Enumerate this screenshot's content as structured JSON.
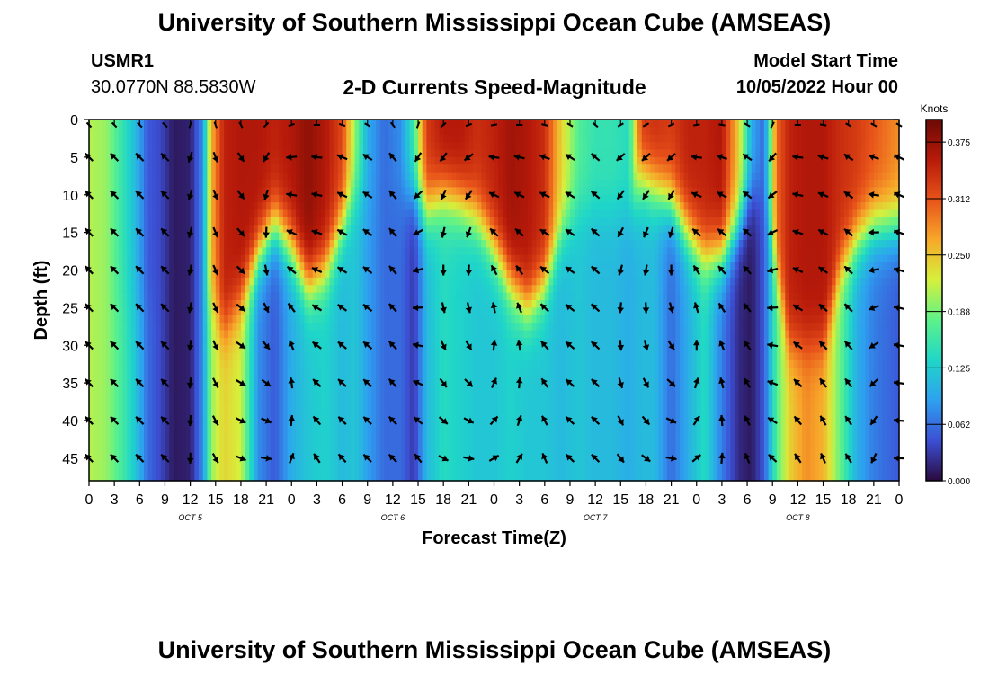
{
  "header": {
    "title": "University of Southern Mississippi Ocean Cube (AMSEAS)",
    "station_id": "USMR1",
    "coordinates": "30.0770N  88.5830W",
    "chart_title": "2-D Currents Speed-Magnitude",
    "model_start_label": "Model Start Time",
    "model_start_value": "10/05/2022 Hour 00"
  },
  "footer": {
    "title": "University of Southern Mississippi Ocean Cube (AMSEAS)"
  },
  "chart_data": {
    "type": "heatmap",
    "title": "2-D Currents Speed-Magnitude",
    "xlabel": "Forecast Time(Z)",
    "ylabel": "Depth (ft)",
    "x_range_hours": [
      0,
      96
    ],
    "y_range_ft": [
      0,
      48
    ],
    "x_ticks": [
      {
        "hour": 0,
        "label": "0"
      },
      {
        "hour": 3,
        "label": "3"
      },
      {
        "hour": 6,
        "label": "6"
      },
      {
        "hour": 9,
        "label": "9"
      },
      {
        "hour": 12,
        "label": "12"
      },
      {
        "hour": 15,
        "label": "15"
      },
      {
        "hour": 18,
        "label": "18"
      },
      {
        "hour": 21,
        "label": "21"
      },
      {
        "hour": 24,
        "label": "0"
      },
      {
        "hour": 27,
        "label": "3"
      },
      {
        "hour": 30,
        "label": "6"
      },
      {
        "hour": 33,
        "label": "9"
      },
      {
        "hour": 36,
        "label": "12"
      },
      {
        "hour": 39,
        "label": "15"
      },
      {
        "hour": 42,
        "label": "18"
      },
      {
        "hour": 45,
        "label": "21"
      },
      {
        "hour": 48,
        "label": "0"
      },
      {
        "hour": 51,
        "label": "3"
      },
      {
        "hour": 54,
        "label": "6"
      },
      {
        "hour": 57,
        "label": "9"
      },
      {
        "hour": 60,
        "label": "12"
      },
      {
        "hour": 63,
        "label": "15"
      },
      {
        "hour": 66,
        "label": "18"
      },
      {
        "hour": 69,
        "label": "21"
      },
      {
        "hour": 72,
        "label": "0"
      },
      {
        "hour": 75,
        "label": "3"
      },
      {
        "hour": 78,
        "label": "6"
      },
      {
        "hour": 81,
        "label": "9"
      },
      {
        "hour": 84,
        "label": "12"
      },
      {
        "hour": 87,
        "label": "15"
      },
      {
        "hour": 90,
        "label": "18"
      },
      {
        "hour": 93,
        "label": "21"
      },
      {
        "hour": 96,
        "label": "0"
      }
    ],
    "y_ticks": [
      0,
      5,
      10,
      15,
      20,
      25,
      30,
      35,
      40,
      45
    ],
    "day_labels": [
      {
        "hour": 12,
        "label": "OCT  5"
      },
      {
        "hour": 36,
        "label": "OCT  6"
      },
      {
        "hour": 60,
        "label": "OCT  7"
      },
      {
        "hour": 84,
        "label": "OCT  8"
      }
    ],
    "colorbar": {
      "unit": "Knots",
      "min": 0.0,
      "max": 0.4,
      "ticks": [
        {
          "value": 0.0,
          "label": "0.000"
        },
        {
          "value": 0.0625,
          "label": "0.062"
        },
        {
          "value": 0.125,
          "label": "0.125"
        },
        {
          "value": 0.1875,
          "label": "0.188"
        },
        {
          "value": 0.25,
          "label": "0.250"
        },
        {
          "value": 0.3125,
          "label": "0.312"
        },
        {
          "value": 0.375,
          "label": "0.375"
        }
      ],
      "stops": [
        "#2a0a3d",
        "#3c4fd4",
        "#2ea0f0",
        "#1fd6c8",
        "#5cf28a",
        "#d6f03c",
        "#f7a82a",
        "#e8531a",
        "#b81a0a",
        "#6b0a05"
      ]
    },
    "profiles_note": "speed profile per hour column: [speed at surface, speed at depth, transition depth ft, sharpness]",
    "profiles": [
      {
        "hour": 0,
        "surface": 0.21,
        "bottom": 0.21,
        "transition": 24
      },
      {
        "hour": 2,
        "surface": 0.2,
        "bottom": 0.2,
        "transition": 24
      },
      {
        "hour": 4,
        "surface": 0.15,
        "bottom": 0.16,
        "transition": 24
      },
      {
        "hour": 5.5,
        "surface": 0.11,
        "bottom": 0.12,
        "transition": 24
      },
      {
        "hour": 7,
        "surface": 0.05,
        "bottom": 0.06,
        "transition": 24
      },
      {
        "hour": 8.5,
        "surface": 0.04,
        "bottom": 0.04,
        "transition": 24
      },
      {
        "hour": 10,
        "surface": 0.01,
        "bottom": 0.01,
        "transition": 24
      },
      {
        "hour": 12,
        "surface": 0.015,
        "bottom": 0.015,
        "transition": 24
      },
      {
        "hour": 13.5,
        "surface": 0.08,
        "bottom": 0.08,
        "transition": 24
      },
      {
        "hour": 14.5,
        "surface": 0.26,
        "bottom": 0.2,
        "transition": 24
      },
      {
        "hour": 16,
        "surface": 0.35,
        "bottom": 0.24,
        "transition": 28
      },
      {
        "hour": 18,
        "surface": 0.36,
        "bottom": 0.22,
        "transition": 24
      },
      {
        "hour": 20,
        "surface": 0.36,
        "bottom": 0.08,
        "transition": 18
      },
      {
        "hour": 22,
        "surface": 0.35,
        "bottom": 0.05,
        "transition": 14
      },
      {
        "hour": 24,
        "surface": 0.36,
        "bottom": 0.1,
        "transition": 17
      },
      {
        "hour": 26,
        "surface": 0.38,
        "bottom": 0.12,
        "transition": 22
      },
      {
        "hour": 28,
        "surface": 0.36,
        "bottom": 0.13,
        "transition": 20
      },
      {
        "hour": 30,
        "surface": 0.32,
        "bottom": 0.11,
        "transition": 14
      },
      {
        "hour": 31.5,
        "surface": 0.2,
        "bottom": 0.12,
        "transition": 10
      },
      {
        "hour": 33,
        "surface": 0.1,
        "bottom": 0.09,
        "transition": 10
      },
      {
        "hour": 35,
        "surface": 0.06,
        "bottom": 0.06,
        "transition": 10
      },
      {
        "hour": 37,
        "surface": 0.08,
        "bottom": 0.06,
        "transition": 10
      },
      {
        "hour": 38.5,
        "surface": 0.16,
        "bottom": 0.03,
        "transition": 10
      },
      {
        "hour": 40,
        "surface": 0.33,
        "bottom": 0.11,
        "transition": 12
      },
      {
        "hour": 42,
        "surface": 0.36,
        "bottom": 0.14,
        "transition": 10
      },
      {
        "hour": 44,
        "surface": 0.36,
        "bottom": 0.13,
        "transition": 11
      },
      {
        "hour": 46,
        "surface": 0.34,
        "bottom": 0.12,
        "transition": 13
      },
      {
        "hour": 48,
        "surface": 0.35,
        "bottom": 0.12,
        "transition": 17
      },
      {
        "hour": 50,
        "surface": 0.37,
        "bottom": 0.13,
        "transition": 22
      },
      {
        "hour": 52,
        "surface": 0.36,
        "bottom": 0.12,
        "transition": 25
      },
      {
        "hour": 54,
        "surface": 0.34,
        "bottom": 0.12,
        "transition": 22
      },
      {
        "hour": 56,
        "surface": 0.24,
        "bottom": 0.11,
        "transition": 15
      },
      {
        "hour": 58,
        "surface": 0.17,
        "bottom": 0.12,
        "transition": 12
      },
      {
        "hour": 60,
        "surface": 0.15,
        "bottom": 0.11,
        "transition": 12
      },
      {
        "hour": 62,
        "surface": 0.15,
        "bottom": 0.11,
        "transition": 12
      },
      {
        "hour": 64,
        "surface": 0.14,
        "bottom": 0.1,
        "transition": 12
      },
      {
        "hour": 65.5,
        "surface": 0.33,
        "bottom": 0.11,
        "transition": 8
      },
      {
        "hour": 67,
        "surface": 0.34,
        "bottom": 0.11,
        "transition": 9
      },
      {
        "hour": 69,
        "surface": 0.33,
        "bottom": 0.06,
        "transition": 11
      },
      {
        "hour": 71,
        "surface": 0.35,
        "bottom": 0.1,
        "transition": 15
      },
      {
        "hour": 73,
        "surface": 0.35,
        "bottom": 0.14,
        "transition": 18
      },
      {
        "hour": 75,
        "surface": 0.36,
        "bottom": 0.07,
        "transition": 18
      },
      {
        "hour": 77,
        "surface": 0.24,
        "bottom": 0.02,
        "transition": 14
      },
      {
        "hour": 78.5,
        "surface": 0.1,
        "bottom": 0.01,
        "transition": 10
      },
      {
        "hour": 80,
        "surface": 0.06,
        "bottom": 0.05,
        "transition": 10
      },
      {
        "hour": 81.5,
        "surface": 0.3,
        "bottom": 0.17,
        "transition": 20
      },
      {
        "hour": 83,
        "surface": 0.35,
        "bottom": 0.24,
        "transition": 30
      },
      {
        "hour": 85,
        "surface": 0.36,
        "bottom": 0.28,
        "transition": 30
      },
      {
        "hour": 87,
        "surface": 0.36,
        "bottom": 0.26,
        "transition": 30
      },
      {
        "hour": 89,
        "surface": 0.34,
        "bottom": 0.18,
        "transition": 20
      },
      {
        "hour": 91,
        "surface": 0.33,
        "bottom": 0.1,
        "transition": 16
      },
      {
        "hour": 93,
        "surface": 0.31,
        "bottom": 0.07,
        "transition": 14
      },
      {
        "hour": 96,
        "surface": 0.28,
        "bottom": 0.05,
        "transition": 14
      }
    ],
    "vector_depths_ft": [
      0,
      5,
      10,
      15,
      20,
      25,
      30,
      35,
      40,
      45
    ],
    "vector_hours": [
      0,
      3,
      6,
      9,
      12,
      15,
      18,
      21,
      24,
      27,
      30,
      33,
      36,
      39,
      42,
      45,
      48,
      51,
      54,
      57,
      60,
      63,
      66,
      69,
      72,
      75,
      78,
      81,
      84,
      87,
      90,
      93,
      96
    ],
    "vector_angle_note": "direction toward, degrees clockwise from north, per forecast hour column (surface/bottom)",
    "vector_directions": [
      {
        "hour": 0,
        "surface": 315,
        "bottom": 315
      },
      {
        "hour": 3,
        "surface": 315,
        "bottom": 315
      },
      {
        "hour": 6,
        "surface": 315,
        "bottom": 315
      },
      {
        "hour": 9,
        "surface": 315,
        "bottom": 315
      },
      {
        "hour": 12,
        "surface": 200,
        "bottom": 180
      },
      {
        "hour": 15,
        "surface": 160,
        "bottom": 150
      },
      {
        "hour": 18,
        "surface": 150,
        "bottom": 110
      },
      {
        "hour": 21,
        "surface": 225,
        "bottom": 90
      },
      {
        "hour": 24,
        "surface": 250,
        "bottom": 30
      },
      {
        "hour": 27,
        "surface": 270,
        "bottom": 330
      },
      {
        "hour": 30,
        "surface": 290,
        "bottom": 320
      },
      {
        "hour": 33,
        "surface": 300,
        "bottom": 315
      },
      {
        "hour": 36,
        "surface": 320,
        "bottom": 315
      },
      {
        "hour": 39,
        "surface": 200,
        "bottom": 330
      },
      {
        "hour": 42,
        "surface": 230,
        "bottom": 110
      },
      {
        "hour": 45,
        "surface": 250,
        "bottom": 90
      },
      {
        "hour": 48,
        "surface": 260,
        "bottom": 70
      },
      {
        "hour": 51,
        "surface": 270,
        "bottom": 40
      },
      {
        "hour": 54,
        "surface": 285,
        "bottom": 340
      },
      {
        "hour": 57,
        "surface": 300,
        "bottom": 315
      },
      {
        "hour": 60,
        "surface": 310,
        "bottom": 315
      },
      {
        "hour": 63,
        "surface": 240,
        "bottom": 135
      },
      {
        "hour": 66,
        "surface": 240,
        "bottom": 120
      },
      {
        "hour": 69,
        "surface": 245,
        "bottom": 90
      },
      {
        "hour": 72,
        "surface": 260,
        "bottom": 60
      },
      {
        "hour": 75,
        "surface": 280,
        "bottom": 10
      },
      {
        "hour": 78,
        "surface": 300,
        "bottom": 340
      },
      {
        "hour": 81,
        "surface": 210,
        "bottom": 320
      },
      {
        "hour": 84,
        "surface": 270,
        "bottom": 330
      },
      {
        "hour": 87,
        "surface": 280,
        "bottom": 340
      },
      {
        "hour": 90,
        "surface": 300,
        "bottom": 330
      },
      {
        "hour": 93,
        "surface": 300,
        "bottom": 200
      },
      {
        "hour": 96,
        "surface": 300,
        "bottom": 270
      }
    ]
  }
}
